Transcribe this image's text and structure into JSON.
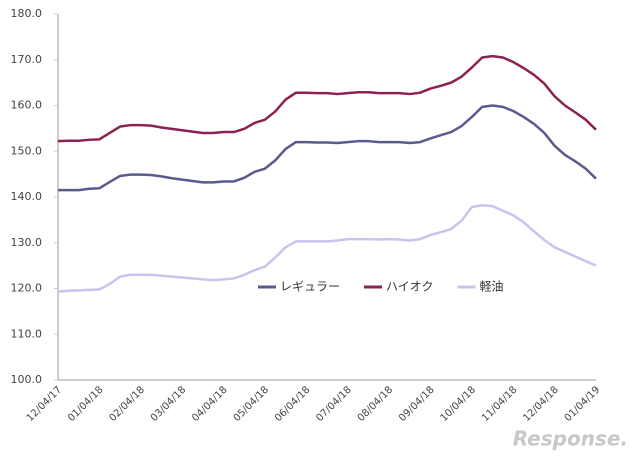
{
  "chart_data": {
    "type": "line",
    "categories": [
      "12/04/17",
      null,
      null,
      null,
      "01/04/18",
      null,
      null,
      null,
      "02/04/18",
      null,
      null,
      null,
      "03/04/18",
      null,
      null,
      null,
      "04/04/18",
      null,
      null,
      null,
      "05/04/18",
      null,
      null,
      null,
      "06/04/18",
      null,
      null,
      null,
      "07/04/18",
      null,
      null,
      null,
      "08/04/18",
      null,
      null,
      null,
      "09/04/18",
      null,
      null,
      null,
      "10/04/18",
      null,
      null,
      null,
      "11/04/18",
      null,
      null,
      null,
      "12/04/18",
      null,
      null,
      null,
      "01/04/19"
    ],
    "series": [
      {
        "name": "レギュラー",
        "color": "#5b5a8f",
        "values": [
          141.5,
          141.5,
          141.5,
          141.8,
          141.9,
          143.3,
          144.6,
          144.9,
          144.9,
          144.8,
          144.5,
          144.1,
          143.8,
          143.5,
          143.2,
          143.2,
          143.4,
          143.4,
          144.2,
          145.5,
          146.2,
          148,
          150.5,
          152,
          152,
          151.9,
          151.9,
          151.8,
          152,
          152.2,
          152.2,
          152,
          152,
          152,
          151.8,
          152,
          152.8,
          153.5,
          154.2,
          155.5,
          157.5,
          159.7,
          160,
          159.7,
          158.8,
          157.5,
          156,
          154,
          151.2,
          149.2,
          147.8,
          146.2,
          144
        ]
      },
      {
        "name": "ハイオク",
        "color": "#8b2252",
        "values": [
          152.2,
          152.3,
          152.3,
          152.5,
          152.6,
          154,
          155.4,
          155.7,
          155.7,
          155.6,
          155.2,
          154.9,
          154.6,
          154.3,
          154,
          154,
          154.2,
          154.2,
          154.9,
          156.2,
          156.9,
          158.7,
          161.3,
          162.8,
          162.8,
          162.7,
          162.7,
          162.5,
          162.7,
          162.9,
          162.9,
          162.7,
          162.7,
          162.7,
          162.5,
          162.8,
          163.7,
          164.3,
          165,
          166.3,
          168.3,
          170.5,
          170.8,
          170.5,
          169.5,
          168.2,
          166.7,
          164.8,
          162,
          160,
          158.5,
          156.9,
          154.7
        ]
      },
      {
        "name": "軽油",
        "color": "#c5c5f0",
        "values": [
          119.3,
          119.5,
          119.6,
          119.7,
          119.8,
          121,
          122.6,
          123,
          123,
          123,
          122.8,
          122.6,
          122.4,
          122.2,
          122,
          121.8,
          122,
          122.2,
          123,
          124,
          124.8,
          126.8,
          129,
          130.3,
          130.3,
          130.3,
          130.3,
          130.5,
          130.8,
          130.8,
          130.8,
          130.7,
          130.8,
          130.7,
          130.5,
          130.8,
          131.7,
          132.3,
          133,
          134.8,
          137.8,
          138.2,
          138,
          137,
          136,
          134.5,
          132.5,
          130.6,
          129,
          128,
          127,
          126,
          125
        ]
      }
    ],
    "ylim": [
      100,
      180
    ],
    "yticks": [
      {
        "value": 100,
        "label": "100.0"
      },
      {
        "value": 110,
        "label": "110.0"
      },
      {
        "value": 120,
        "label": "120.0"
      },
      {
        "value": 130,
        "label": "130.0"
      },
      {
        "value": 140,
        "label": "140.0"
      },
      {
        "value": 150,
        "label": "150.0"
      },
      {
        "value": 160,
        "label": "160.0"
      },
      {
        "value": 170,
        "label": "170.0"
      },
      {
        "value": 180,
        "label": "180.0"
      }
    ],
    "grid": false,
    "legend": "center",
    "watermark": "Response."
  }
}
